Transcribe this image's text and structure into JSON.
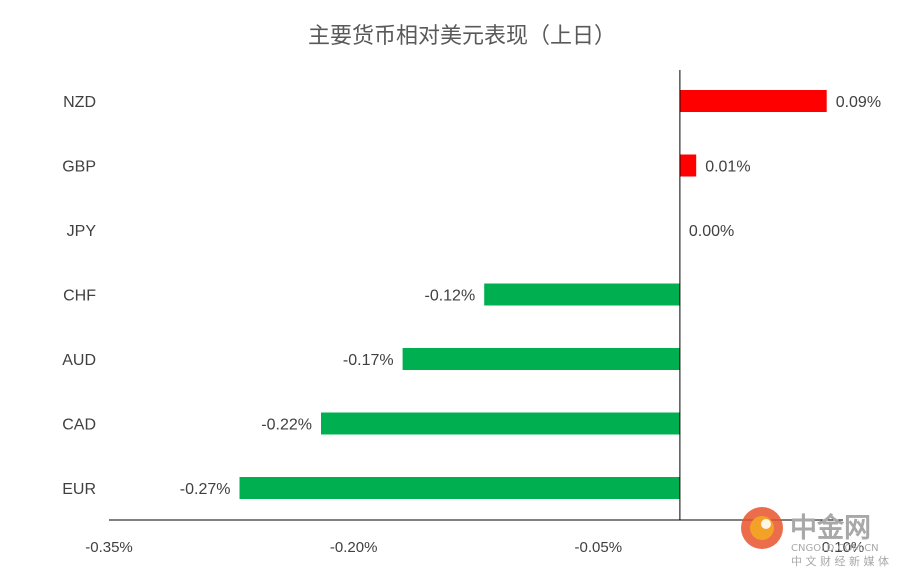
{
  "chart_data": {
    "type": "bar",
    "orientation": "horizontal",
    "title": "主要货币相对美元表现（上日）",
    "categories": [
      "NZD",
      "GBP",
      "JPY",
      "CHF",
      "AUD",
      "CAD",
      "EUR"
    ],
    "values": [
      0.09,
      0.01,
      0.0,
      -0.12,
      -0.17,
      -0.22,
      -0.27
    ],
    "data_labels": [
      "0.09%",
      "0.01%",
      "0.00%",
      "-0.12%",
      "-0.17%",
      "-0.22%",
      "-0.27%"
    ],
    "xlim": [
      -0.35,
      0.1
    ],
    "x_ticks": [
      -0.35,
      -0.2,
      -0.05,
      0.1
    ],
    "x_tick_labels": [
      "-0.35%",
      "-0.20%",
      "-0.05%",
      "0.10%"
    ],
    "grid": false,
    "legend": "none",
    "colors": {
      "positive": "#ff0000",
      "negative": "#00b050",
      "axis": "#000000",
      "text": "#404040"
    }
  },
  "watermark": {
    "name": "中金网",
    "url": "CNGOLD.COM.CN",
    "slogan": "中 文 财 经 新 媒 体",
    "colors": {
      "logo_outer": "#e8532b",
      "logo_inner": "#f5a623",
      "text": "#a8a8a8"
    }
  }
}
